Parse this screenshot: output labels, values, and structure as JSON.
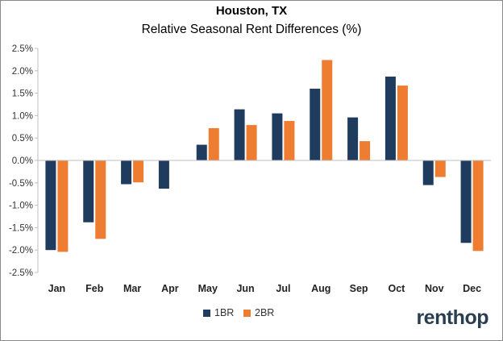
{
  "chart_data": {
    "type": "bar",
    "title": "Houston, TX",
    "subtitle": "Relative Seasonal Rent Differences (%)",
    "xlabel": "",
    "ylabel": "",
    "categories": [
      "Jan",
      "Feb",
      "Mar",
      "Apr",
      "May",
      "Jun",
      "Jul",
      "Aug",
      "Sep",
      "Oct",
      "Nov",
      "Dec"
    ],
    "series": [
      {
        "name": "1BR",
        "color": "#1f3b5e",
        "values": [
          -2.0,
          -1.38,
          -0.53,
          -0.63,
          0.35,
          1.14,
          1.05,
          1.6,
          0.96,
          1.87,
          -0.55,
          -1.84
        ]
      },
      {
        "name": "2BR",
        "color": "#ee7d31",
        "values": [
          -2.04,
          -1.75,
          -0.49,
          0.0,
          0.72,
          0.79,
          0.88,
          2.24,
          0.43,
          1.67,
          -0.37,
          -2.02
        ]
      }
    ],
    "ylim": [
      -2.5,
      2.5
    ],
    "yticks": [
      "2.5%",
      "2.0%",
      "1.5%",
      "1.0%",
      "0.5%",
      "0.0%",
      "-0.5%",
      "-1.0%",
      "-1.5%",
      "-2.0%",
      "-2.5%"
    ],
    "ytick_values": [
      2.5,
      2.0,
      1.5,
      1.0,
      0.5,
      0.0,
      -0.5,
      -1.0,
      -1.5,
      -2.0,
      -2.5
    ],
    "grid": false,
    "legend": "bottom-center"
  },
  "branding": {
    "logo_text_main": "renthop",
    "logo_color": "#2b3d51",
    "logo_accent": "#f08a3c"
  }
}
